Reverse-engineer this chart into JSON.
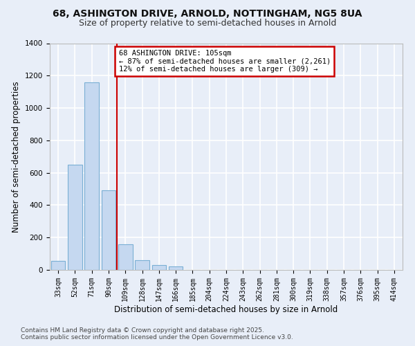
{
  "title_line1": "68, ASHINGTON DRIVE, ARNOLD, NOTTINGHAM, NG5 8UA",
  "title_line2": "Size of property relative to semi-detached houses in Arnold",
  "xlabel": "Distribution of semi-detached houses by size in Arnold",
  "ylabel": "Number of semi-detached properties",
  "categories": [
    "33sqm",
    "52sqm",
    "71sqm",
    "90sqm",
    "109sqm",
    "128sqm",
    "147sqm",
    "166sqm",
    "185sqm",
    "204sqm",
    "224sqm",
    "243sqm",
    "262sqm",
    "281sqm",
    "300sqm",
    "319sqm",
    "338sqm",
    "357sqm",
    "376sqm",
    "395sqm",
    "414sqm"
  ],
  "values": [
    57,
    648,
    1160,
    490,
    158,
    60,
    28,
    22,
    0,
    0,
    0,
    0,
    0,
    0,
    0,
    0,
    0,
    0,
    0,
    0,
    0
  ],
  "bar_color": "#c5d8f0",
  "bar_edge_color": "#7aafd4",
  "annotation_text": "68 ASHINGTON DRIVE: 105sqm\n← 87% of semi-detached houses are smaller (2,261)\n12% of semi-detached houses are larger (309) →",
  "annotation_box_color": "#ffffff",
  "annotation_box_edge": "#cc0000",
  "red_line_color": "#cc0000",
  "ylim": [
    0,
    1400
  ],
  "yticks": [
    0,
    200,
    400,
    600,
    800,
    1000,
    1200,
    1400
  ],
  "background_color": "#e8eef8",
  "plot_bg_color": "#e8eef8",
  "grid_color": "#ffffff",
  "footer_line1": "Contains HM Land Registry data © Crown copyright and database right 2025.",
  "footer_line2": "Contains public sector information licensed under the Open Government Licence v3.0.",
  "title_fontsize": 10,
  "subtitle_fontsize": 9,
  "axis_label_fontsize": 8.5,
  "tick_fontsize": 7,
  "footer_fontsize": 6.5,
  "annotation_fontsize": 7.5
}
